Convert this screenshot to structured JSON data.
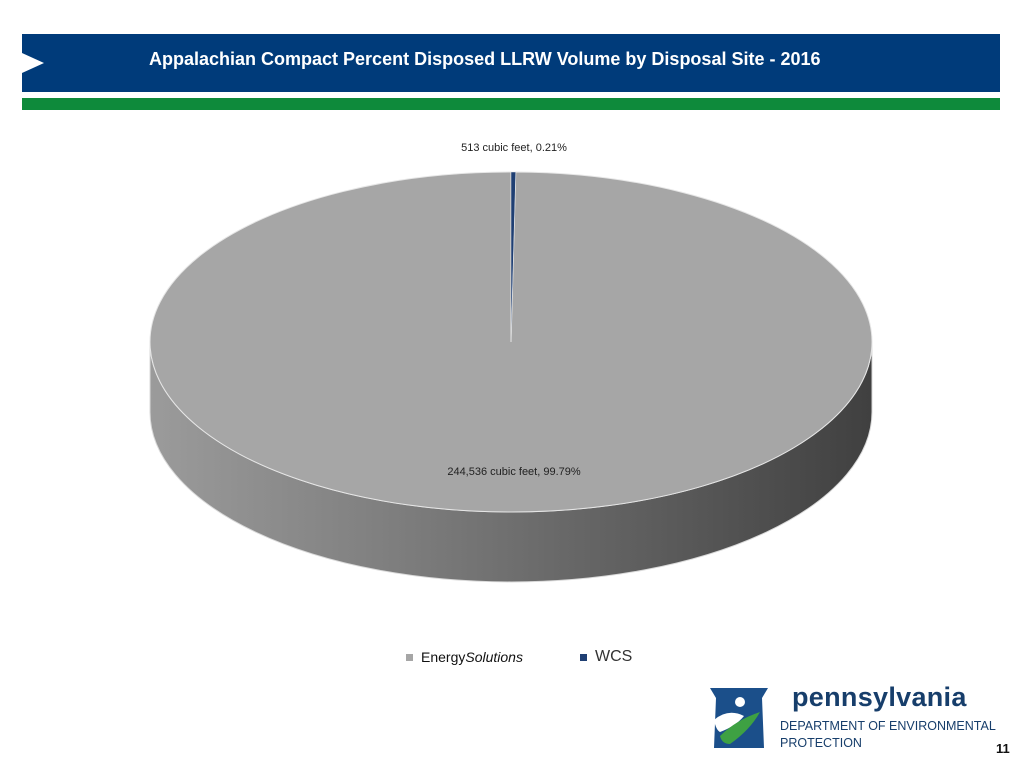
{
  "slide": {
    "title": "Appalachian Compact Percent Disposed LLRW Volume by Disposal Site - 2016",
    "page_number": "11"
  },
  "logo": {
    "name": "pennsylvania",
    "department_line1": "DEPARTMENT OF ENVIRONMENTAL",
    "department_line2": "PROTECTION"
  },
  "legend": {
    "energy_prefix": "Energy",
    "energy_suffix": "Solutions",
    "wcs": "WCS"
  },
  "colors": {
    "title_bar": "#003b7a",
    "green_bar": "#0e8a3b",
    "energy_solutions": "#a6a6a6",
    "wcs": "#1f3f73"
  },
  "chart_data": {
    "type": "pie",
    "style": "3d",
    "title": "",
    "categories": [
      "EnergySolutions",
      "WCS"
    ],
    "values": [
      244536,
      513
    ],
    "percentages": [
      99.79,
      0.21
    ],
    "data_labels": [
      "244,536 cubic feet, 99.79%",
      "513 cubic feet, 0.21%"
    ],
    "legend_position": "bottom"
  }
}
